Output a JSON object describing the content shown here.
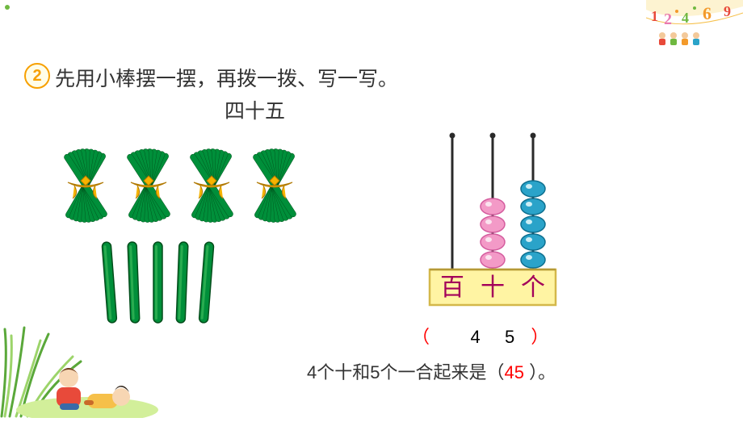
{
  "top_dot_color": "#6fb840",
  "corner": {
    "ribbon_color": "#fbe8a4",
    "num_a": "1",
    "num_b": "2",
    "num_c": "4",
    "num_d": "6",
    "num_e": "9",
    "dot_red": "#e84a3a",
    "dot_pink": "#e97ab0",
    "dot_green": "#6fb840",
    "dot_orange": "#f39a2b"
  },
  "question": {
    "badge": "2",
    "text": "先用小棒摆一摆，再拨一拨、写一写。",
    "number_name": "四十五",
    "badge_border": "#f7a000",
    "badge_bg": "#fffde8",
    "text_color": "#333333"
  },
  "sticks": {
    "bundle_count": 4,
    "loose_count": 5,
    "fill": "#008f3a",
    "stroke": "#004d1a",
    "tie_color": "#f6b400"
  },
  "abacus": {
    "rod_color": "#2a2a2a",
    "base_fill": "#fff4a3",
    "base_stroke": "#d4b84a",
    "frame_stroke": "#b59a36",
    "labels": {
      "hundreds": "百",
      "tens": "十",
      "ones": "个"
    },
    "label_color": "#a3005a",
    "tens_beads": 4,
    "ones_beads": 5,
    "tens_bead_fill": "#f39ac7",
    "tens_bead_stroke": "#d45c9e",
    "tens_bead_hilite": "#fbe3ef",
    "ones_bead_fill": "#2aa3c9",
    "ones_bead_stroke": "#0e6f8f",
    "ones_bead_hilite": "#cdeef5"
  },
  "answer": {
    "tens_digit": "4",
    "ones_digit": "5",
    "paren_color": "#ff0000"
  },
  "explanation": {
    "phrase1": "4个十和5个一合起来是（",
    "value": "45",
    "phrase2": " ）。",
    "value_color": "#ff0000"
  },
  "decor": {
    "grass_green": "#9cd46a",
    "grass_dark": "#5aa83a",
    "child_hair_a": "#6a3a1a",
    "child_shirt_a": "#e84a3a",
    "child_hair_b": "#33261a",
    "child_shirt_b": "#f6c04a"
  }
}
